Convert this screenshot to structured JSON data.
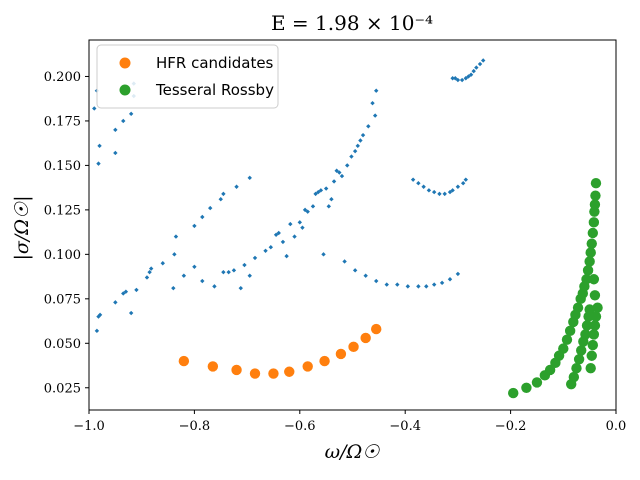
{
  "chart_data": {
    "type": "scatter",
    "title": "E = 1.98 × 10⁻⁴",
    "xlabel": "ω/Ω☉",
    "ylabel": "|σ/Ω☉|",
    "xlim": [
      -1.0,
      0.0
    ],
    "ylim": [
      0.0125,
      0.2205
    ],
    "xticks": [
      -1.0,
      -0.8,
      -0.6,
      -0.4,
      -0.2,
      0.0
    ],
    "xtick_labels": [
      "−1.0",
      "−0.8",
      "−0.6",
      "−0.4",
      "−0.2",
      "0.0"
    ],
    "yticks": [
      0.025,
      0.05,
      0.075,
      0.1,
      0.125,
      0.15,
      0.175,
      0.2
    ],
    "ytick_labels": [
      "0.025",
      "0.050",
      "0.075",
      "0.100",
      "0.125",
      "0.150",
      "0.175",
      "0.200"
    ],
    "legend_position": "top-left",
    "series": [
      {
        "name": "",
        "color": "#1f77b4",
        "marker": "small",
        "points": [
          [
            -0.985,
            0.057
          ],
          [
            -0.982,
            0.065
          ],
          [
            -0.979,
            0.066
          ],
          [
            -0.95,
            0.073
          ],
          [
            -0.935,
            0.078
          ],
          [
            -0.93,
            0.079
          ],
          [
            -0.92,
            0.067
          ],
          [
            -0.91,
            0.08
          ],
          [
            -0.89,
            0.087
          ],
          [
            -0.885,
            0.09
          ],
          [
            -0.882,
            0.092
          ],
          [
            -0.86,
            0.095
          ],
          [
            -0.84,
            0.081
          ],
          [
            -0.838,
            0.1
          ],
          [
            -0.82,
            0.088
          ],
          [
            -0.8,
            0.093
          ],
          [
            -0.785,
            0.085
          ],
          [
            -0.762,
            0.082
          ],
          [
            -0.745,
            0.09
          ],
          [
            -0.735,
            0.09
          ],
          [
            -0.725,
            0.091
          ],
          [
            -0.712,
            0.081
          ],
          [
            -0.705,
            0.094
          ],
          [
            -0.695,
            0.088
          ],
          [
            -0.685,
            0.098
          ],
          [
            -0.665,
            0.102
          ],
          [
            -0.655,
            0.104
          ],
          [
            -0.645,
            0.111
          ],
          [
            -0.64,
            0.112
          ],
          [
            -0.632,
            0.107
          ],
          [
            -0.625,
            0.099
          ],
          [
            -0.618,
            0.117
          ],
          [
            -0.61,
            0.11
          ],
          [
            -0.6,
            0.118
          ],
          [
            -0.595,
            0.115
          ],
          [
            -0.59,
            0.125
          ],
          [
            -0.585,
            0.124
          ],
          [
            -0.575,
            0.127
          ],
          [
            -0.57,
            0.134
          ],
          [
            -0.565,
            0.135
          ],
          [
            -0.56,
            0.136
          ],
          [
            -0.55,
            0.137
          ],
          [
            -0.545,
            0.127
          ],
          [
            -0.54,
            0.131
          ],
          [
            -0.535,
            0.141
          ],
          [
            -0.53,
            0.147
          ],
          [
            -0.525,
            0.146
          ],
          [
            -0.52,
            0.144
          ],
          [
            -0.51,
            0.15
          ],
          [
            -0.502,
            0.155
          ],
          [
            -0.495,
            0.158
          ],
          [
            -0.49,
            0.161
          ],
          [
            -0.485,
            0.164
          ],
          [
            -0.48,
            0.167
          ],
          [
            -0.47,
            0.172
          ],
          [
            -0.462,
            0.185
          ],
          [
            -0.457,
            0.178
          ],
          [
            -0.455,
            0.192
          ],
          [
            -0.835,
            0.11
          ],
          [
            -0.8,
            0.116
          ],
          [
            -0.785,
            0.121
          ],
          [
            -0.77,
            0.126
          ],
          [
            -0.75,
            0.131
          ],
          [
            -0.745,
            0.134
          ],
          [
            -0.72,
            0.138
          ],
          [
            -0.695,
            0.143
          ],
          [
            -0.99,
            0.182
          ],
          [
            -0.985,
            0.192
          ],
          [
            -0.982,
            0.151
          ],
          [
            -0.98,
            0.161
          ],
          [
            -0.95,
            0.157
          ],
          [
            -0.95,
            0.17
          ],
          [
            -0.935,
            0.175
          ],
          [
            -0.92,
            0.179
          ],
          [
            -0.915,
            0.189
          ],
          [
            -0.915,
            0.196
          ],
          [
            -0.555,
            0.1
          ],
          [
            -0.515,
            0.096
          ],
          [
            -0.495,
            0.091
          ],
          [
            -0.475,
            0.088
          ],
          [
            -0.455,
            0.085
          ],
          [
            -0.435,
            0.083
          ],
          [
            -0.415,
            0.083
          ],
          [
            -0.395,
            0.082
          ],
          [
            -0.375,
            0.082
          ],
          [
            -0.36,
            0.082
          ],
          [
            -0.345,
            0.083
          ],
          [
            -0.33,
            0.084
          ],
          [
            -0.315,
            0.086
          ],
          [
            -0.3,
            0.089
          ],
          [
            -0.385,
            0.142
          ],
          [
            -0.375,
            0.14
          ],
          [
            -0.365,
            0.138
          ],
          [
            -0.355,
            0.136
          ],
          [
            -0.345,
            0.135
          ],
          [
            -0.335,
            0.134
          ],
          [
            -0.325,
            0.134
          ],
          [
            -0.315,
            0.135
          ],
          [
            -0.31,
            0.136
          ],
          [
            -0.3,
            0.138
          ],
          [
            -0.29,
            0.14
          ],
          [
            -0.285,
            0.142
          ],
          [
            -0.31,
            0.199
          ],
          [
            -0.305,
            0.199
          ],
          [
            -0.3,
            0.198
          ],
          [
            -0.292,
            0.198
          ],
          [
            -0.285,
            0.199
          ],
          [
            -0.28,
            0.2
          ],
          [
            -0.275,
            0.201
          ],
          [
            -0.27,
            0.203
          ],
          [
            -0.265,
            0.205
          ],
          [
            -0.258,
            0.207
          ],
          [
            -0.252,
            0.209
          ]
        ]
      },
      {
        "name": "HFR candidates",
        "color": "#ff7f0e",
        "marker": "large",
        "points": [
          [
            -0.82,
            0.04
          ],
          [
            -0.765,
            0.037
          ],
          [
            -0.72,
            0.035
          ],
          [
            -0.685,
            0.033
          ],
          [
            -0.65,
            0.033
          ],
          [
            -0.62,
            0.034
          ],
          [
            -0.585,
            0.037
          ],
          [
            -0.553,
            0.04
          ],
          [
            -0.522,
            0.044
          ],
          [
            -0.498,
            0.048
          ],
          [
            -0.475,
            0.053
          ],
          [
            -0.455,
            0.058
          ]
        ]
      },
      {
        "name": "Tesseral Rossby",
        "color": "#2ca02c",
        "marker": "large",
        "points": [
          [
            -0.195,
            0.022
          ],
          [
            -0.17,
            0.025
          ],
          [
            -0.15,
            0.028
          ],
          [
            -0.135,
            0.032
          ],
          [
            -0.125,
            0.035
          ],
          [
            -0.115,
            0.039
          ],
          [
            -0.108,
            0.043
          ],
          [
            -0.1,
            0.047
          ],
          [
            -0.093,
            0.052
          ],
          [
            -0.087,
            0.057
          ],
          [
            -0.081,
            0.062
          ],
          [
            -0.077,
            0.066
          ],
          [
            -0.072,
            0.07
          ],
          [
            -0.067,
            0.075
          ],
          [
            -0.063,
            0.078
          ],
          [
            -0.06,
            0.082
          ],
          [
            -0.056,
            0.086
          ],
          [
            -0.053,
            0.091
          ],
          [
            -0.05,
            0.096
          ],
          [
            -0.048,
            0.101
          ],
          [
            -0.046,
            0.106
          ],
          [
            -0.044,
            0.112
          ],
          [
            -0.042,
            0.118
          ],
          [
            -0.041,
            0.124
          ],
          [
            -0.04,
            0.128
          ],
          [
            -0.039,
            0.133
          ],
          [
            -0.038,
            0.14
          ],
          [
            -0.085,
            0.027
          ],
          [
            -0.08,
            0.031
          ],
          [
            -0.075,
            0.036
          ],
          [
            -0.07,
            0.041
          ],
          [
            -0.066,
            0.046
          ],
          [
            -0.062,
            0.051
          ],
          [
            -0.058,
            0.055
          ],
          [
            -0.055,
            0.06
          ],
          [
            -0.052,
            0.065
          ],
          [
            -0.05,
            0.069
          ],
          [
            -0.048,
            0.036
          ],
          [
            -0.046,
            0.043
          ],
          [
            -0.044,
            0.049
          ],
          [
            -0.042,
            0.055
          ],
          [
            -0.04,
            0.06
          ],
          [
            -0.038,
            0.065
          ],
          [
            -0.035,
            0.07
          ],
          [
            -0.04,
            0.077
          ],
          [
            -0.042,
            0.086
          ]
        ]
      }
    ]
  }
}
